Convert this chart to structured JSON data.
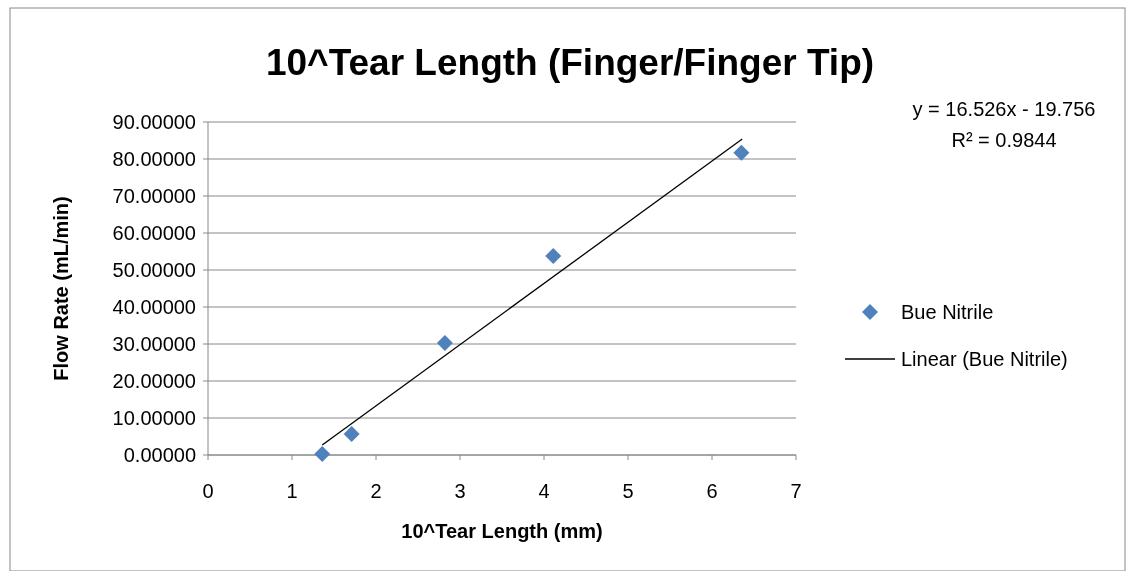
{
  "chart_data": {
    "type": "scatter",
    "title": "10^Tear Length (Finger/Finger Tip)",
    "xlabel": "10^Tear Length (mm)",
    "ylabel": "Flow Rate (mL/min)",
    "annotations": [
      "y = 16.526x - 19.756",
      "R² = 0.9844"
    ],
    "series": [
      {
        "name": "Bue Nitrile",
        "color": "#4f81bd",
        "marker": "diamond",
        "x": [
          1.36,
          1.71,
          2.82,
          4.11,
          6.35
        ],
        "values": [
          0.3,
          5.7,
          30.3,
          53.8,
          81.7
        ]
      },
      {
        "name": "Linear (Bue Nitrile)",
        "type": "line",
        "color": "#000000",
        "marker": "none",
        "line_style": "solid",
        "x": [
          1.36,
          6.36
        ],
        "values": [
          2.7,
          85.4
        ]
      }
    ],
    "xlim": [
      0,
      7
    ],
    "xticks": [
      0,
      1,
      2,
      3,
      4,
      5,
      6,
      7
    ],
    "ylim": [
      0,
      90
    ],
    "yticks": [
      {
        "value": 0,
        "label": "0.00000"
      },
      {
        "value": 10,
        "label": "10.00000"
      },
      {
        "value": 20,
        "label": "20.00000"
      },
      {
        "value": 30,
        "label": "30.00000"
      },
      {
        "value": 40,
        "label": "40.00000"
      },
      {
        "value": 50,
        "label": "50.00000"
      },
      {
        "value": 60,
        "label": "60.00000"
      },
      {
        "value": 70,
        "label": "70.00000"
      },
      {
        "value": 80,
        "label": "80.00000"
      },
      {
        "value": 90,
        "label": "90.00000"
      }
    ],
    "grid": "y",
    "legend": "right"
  }
}
